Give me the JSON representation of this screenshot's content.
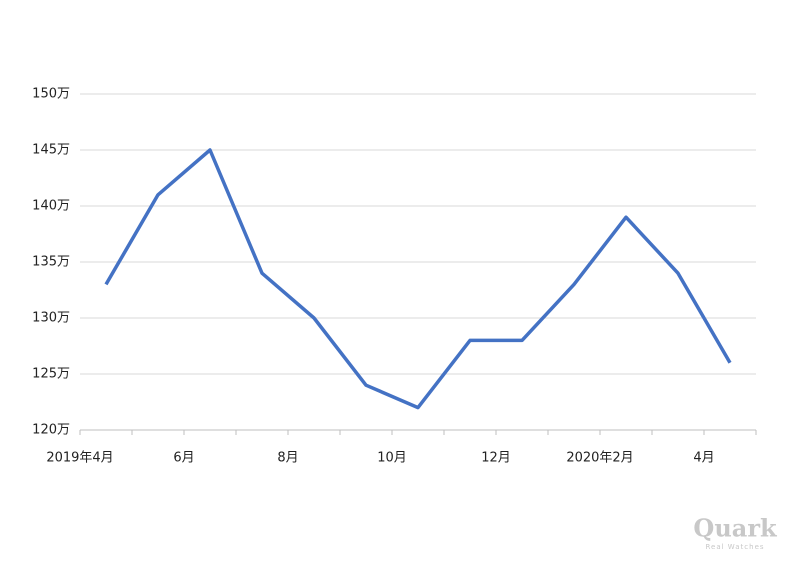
{
  "chart_data": {
    "type": "line",
    "categories": [
      "2019年4月",
      null,
      "6月",
      null,
      "8月",
      null,
      "10月",
      null,
      "12月",
      null,
      "2020年2月",
      null,
      "4月"
    ],
    "series": [
      {
        "color": "#4472c4",
        "values": [
          133,
          141,
          145,
          134,
          130,
          124,
          122,
          128,
          128,
          133,
          139,
          134,
          126
        ]
      }
    ],
    "ylim": [
      120,
      150
    ],
    "yticks": [
      {
        "value": 120,
        "label": "120万"
      },
      {
        "value": 125,
        "label": "125万"
      },
      {
        "value": 130,
        "label": "130万"
      },
      {
        "value": 135,
        "label": "135万"
      },
      {
        "value": 140,
        "label": "140万"
      },
      {
        "value": 145,
        "label": "145万"
      },
      {
        "value": 150,
        "label": "150万"
      }
    ],
    "grid": true
  },
  "watermark": {
    "brand": "Quark",
    "tagline": "Real Watches"
  }
}
